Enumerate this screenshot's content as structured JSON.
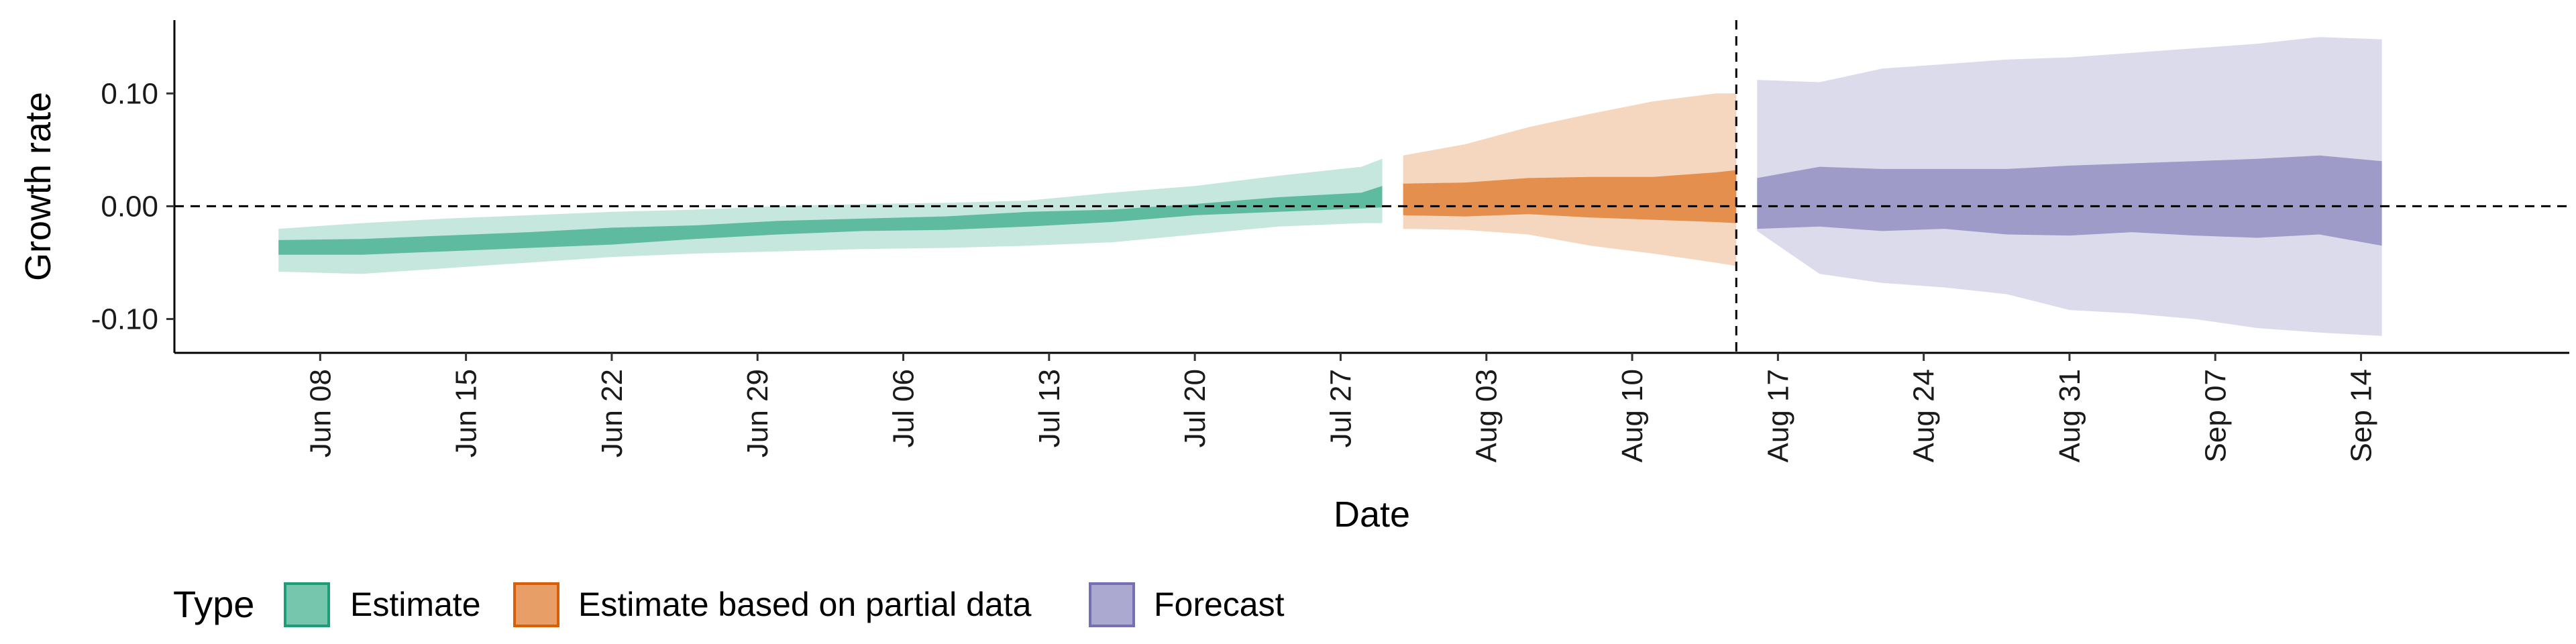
{
  "chart_data": {
    "type": "area",
    "title": "",
    "xlabel": "Date",
    "ylabel": "Growth rate",
    "x_range": [
      "2020-06-01",
      "2020-09-24"
    ],
    "ylim": [
      -0.13,
      0.165
    ],
    "y_ticks": [
      {
        "value": 0.1,
        "label": "0.10"
      },
      {
        "value": 0.0,
        "label": "0.00"
      },
      {
        "value": -0.1,
        "label": "-0.10"
      }
    ],
    "x_ticks": [
      {
        "date": "2020-06-08",
        "label": "Jun 08"
      },
      {
        "date": "2020-06-15",
        "label": "Jun 15"
      },
      {
        "date": "2020-06-22",
        "label": "Jun 22"
      },
      {
        "date": "2020-06-29",
        "label": "Jun 29"
      },
      {
        "date": "2020-07-06",
        "label": "Jul 06"
      },
      {
        "date": "2020-07-13",
        "label": "Jul 13"
      },
      {
        "date": "2020-07-20",
        "label": "Jul 20"
      },
      {
        "date": "2020-07-27",
        "label": "Jul 27"
      },
      {
        "date": "2020-08-03",
        "label": "Aug 03"
      },
      {
        "date": "2020-08-10",
        "label": "Aug 10"
      },
      {
        "date": "2020-08-17",
        "label": "Aug 17"
      },
      {
        "date": "2020-08-24",
        "label": "Aug 24"
      },
      {
        "date": "2020-08-31",
        "label": "Aug 31"
      },
      {
        "date": "2020-09-07",
        "label": "Sep 07"
      },
      {
        "date": "2020-09-14",
        "label": "Sep 14"
      }
    ],
    "hline": 0,
    "vline_date": "2020-08-15",
    "grid": false,
    "legend": {
      "title": "Type",
      "position": "bottom-left",
      "items": [
        "Estimate",
        "Estimate based on partial data",
        "Forecast"
      ]
    },
    "series": [
      {
        "name": "Estimate",
        "fill": "#1B9E77",
        "points": [
          {
            "date": "2020-06-06",
            "lo90": -0.058,
            "lo50": -0.043,
            "hi50": -0.03,
            "hi90": -0.02
          },
          {
            "date": "2020-06-10",
            "lo90": -0.06,
            "lo50": -0.043,
            "hi50": -0.029,
            "hi90": -0.015
          },
          {
            "date": "2020-06-14",
            "lo90": -0.055,
            "lo50": -0.04,
            "hi50": -0.026,
            "hi90": -0.011
          },
          {
            "date": "2020-06-18",
            "lo90": -0.05,
            "lo50": -0.037,
            "hi50": -0.023,
            "hi90": -0.008
          },
          {
            "date": "2020-06-22",
            "lo90": -0.045,
            "lo50": -0.034,
            "hi50": -0.019,
            "hi90": -0.005
          },
          {
            "date": "2020-06-26",
            "lo90": -0.042,
            "lo50": -0.029,
            "hi50": -0.017,
            "hi90": -0.003
          },
          {
            "date": "2020-06-30",
            "lo90": -0.04,
            "lo50": -0.025,
            "hi50": -0.013,
            "hi90": 0.0
          },
          {
            "date": "2020-07-04",
            "lo90": -0.038,
            "lo50": -0.022,
            "hi50": -0.011,
            "hi90": 0.002
          },
          {
            "date": "2020-07-08",
            "lo90": -0.037,
            "lo50": -0.021,
            "hi50": -0.009,
            "hi90": 0.003
          },
          {
            "date": "2020-07-12",
            "lo90": -0.035,
            "lo50": -0.018,
            "hi50": -0.005,
            "hi90": 0.005
          },
          {
            "date": "2020-07-16",
            "lo90": -0.032,
            "lo50": -0.014,
            "hi50": -0.003,
            "hi90": 0.012
          },
          {
            "date": "2020-07-20",
            "lo90": -0.025,
            "lo50": -0.008,
            "hi50": 0.002,
            "hi90": 0.018
          },
          {
            "date": "2020-07-24",
            "lo90": -0.018,
            "lo50": -0.005,
            "hi50": 0.008,
            "hi90": 0.027
          },
          {
            "date": "2020-07-28",
            "lo90": -0.015,
            "lo50": -0.002,
            "hi50": 0.012,
            "hi90": 0.035
          },
          {
            "date": "2020-07-29",
            "lo90": -0.015,
            "lo50": -0.001,
            "hi50": 0.018,
            "hi90": 0.042
          }
        ]
      },
      {
        "name": "Estimate based on partial data",
        "fill": "#D95F02",
        "points": [
          {
            "date": "2020-07-30",
            "lo90": -0.02,
            "lo50": -0.008,
            "hi50": 0.02,
            "hi90": 0.045
          },
          {
            "date": "2020-08-02",
            "lo90": -0.021,
            "lo50": -0.009,
            "hi50": 0.021,
            "hi90": 0.055
          },
          {
            "date": "2020-08-05",
            "lo90": -0.025,
            "lo50": -0.007,
            "hi50": 0.025,
            "hi90": 0.07
          },
          {
            "date": "2020-08-08",
            "lo90": -0.035,
            "lo50": -0.01,
            "hi50": 0.026,
            "hi90": 0.082
          },
          {
            "date": "2020-08-11",
            "lo90": -0.042,
            "lo50": -0.012,
            "hi50": 0.026,
            "hi90": 0.093
          },
          {
            "date": "2020-08-14",
            "lo90": -0.05,
            "lo50": -0.014,
            "hi50": 0.03,
            "hi90": 0.1
          },
          {
            "date": "2020-08-15",
            "lo90": -0.053,
            "lo50": -0.015,
            "hi50": 0.032,
            "hi90": 0.1
          }
        ]
      },
      {
        "name": "Forecast",
        "fill": "#7570B3",
        "points": [
          {
            "date": "2020-08-16",
            "lo90": -0.022,
            "lo50": -0.02,
            "hi50": 0.025,
            "hi90": 0.112
          },
          {
            "date": "2020-08-19",
            "lo90": -0.06,
            "lo50": -0.018,
            "hi50": 0.035,
            "hi90": 0.11
          },
          {
            "date": "2020-08-22",
            "lo90": -0.068,
            "lo50": -0.022,
            "hi50": 0.033,
            "hi90": 0.122
          },
          {
            "date": "2020-08-25",
            "lo90": -0.072,
            "lo50": -0.02,
            "hi50": 0.033,
            "hi90": 0.126
          },
          {
            "date": "2020-08-28",
            "lo90": -0.078,
            "lo50": -0.025,
            "hi50": 0.033,
            "hi90": 0.13
          },
          {
            "date": "2020-08-31",
            "lo90": -0.092,
            "lo50": -0.026,
            "hi50": 0.036,
            "hi90": 0.132
          },
          {
            "date": "2020-09-03",
            "lo90": -0.095,
            "lo50": -0.023,
            "hi50": 0.038,
            "hi90": 0.136
          },
          {
            "date": "2020-09-06",
            "lo90": -0.1,
            "lo50": -0.026,
            "hi50": 0.04,
            "hi90": 0.14
          },
          {
            "date": "2020-09-09",
            "lo90": -0.108,
            "lo50": -0.028,
            "hi50": 0.042,
            "hi90": 0.144
          },
          {
            "date": "2020-09-12",
            "lo90": -0.112,
            "lo50": -0.025,
            "hi50": 0.045,
            "hi90": 0.15
          },
          {
            "date": "2020-09-15",
            "lo90": -0.115,
            "lo50": -0.035,
            "hi50": 0.04,
            "hi90": 0.148
          }
        ]
      }
    ]
  }
}
